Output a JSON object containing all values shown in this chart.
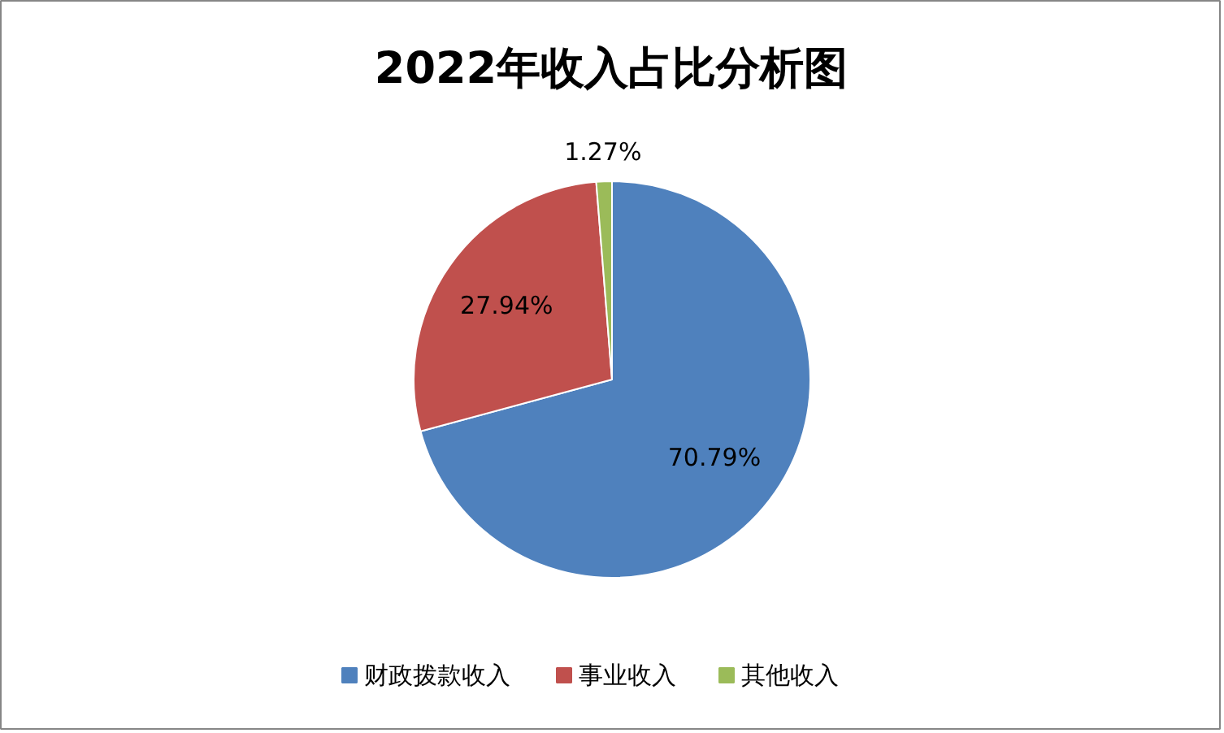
{
  "chart_data": {
    "type": "pie",
    "title": "2022年收入占比分析图",
    "categories": [
      "财政拨款收入",
      "事业收入",
      "其他收入"
    ],
    "values": [
      70.79,
      27.94,
      1.27
    ],
    "colors": [
      "#4f81bd",
      "#c0504d",
      "#9bbb59"
    ],
    "value_labels": [
      "70.79%",
      "27.94%",
      "1.27%"
    ],
    "legend": "bottom"
  }
}
